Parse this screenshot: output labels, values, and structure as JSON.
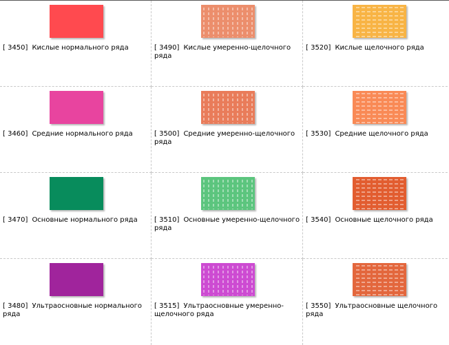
{
  "swatches": [
    {
      "code": "[  3450]",
      "label": "Кислые нормального ряда",
      "color": "#ff4a4f",
      "pattern": "solid"
    },
    {
      "code": "[  3490]",
      "label": "Кислые умеренно-щелочного ряда",
      "color": "#ec8e6c",
      "pattern": "vertical-dash"
    },
    {
      "code": "[  3520]",
      "label": "Кислые щелочного ряда",
      "color": "#f8b445",
      "pattern": "horizontal-dash"
    },
    {
      "code": "[  3460]",
      "label": "Средние нормального ряда",
      "color": "#e8449f",
      "pattern": "solid"
    },
    {
      "code": "[  3500]",
      "label": "Средние умеренно-щелочного ряда",
      "color": "#e97c5a",
      "pattern": "vertical-dash"
    },
    {
      "code": "[  3530]",
      "label": "Средние щелочного ряда",
      "color": "#f98a56",
      "pattern": "horizontal-dash"
    },
    {
      "code": "[  3470]",
      "label": "Основные нормального ряда",
      "color": "#088c5c",
      "pattern": "solid"
    },
    {
      "code": "[  3510]",
      "label": "Основные умеренно-щелочного ряда",
      "color": "#5cc57e",
      "pattern": "vertical-dash"
    },
    {
      "code": "[  3540]",
      "label": "Основные щелочного ряда",
      "color": "#e25d30",
      "pattern": "horizontal-dash"
    },
    {
      "code": "[  3480]",
      "label": "Ультраосновные нормального ряда",
      "color": "#a0249c",
      "pattern": "solid"
    },
    {
      "code": "[  3515]",
      "label": "Ультраосновные умеренно-щелочного ряда",
      "color": "#cd4bd2",
      "pattern": "vertical-dash"
    },
    {
      "code": "[  3550]",
      "label": "Ультраосновные щелочного ряда",
      "color": "#e3673d",
      "pattern": "horizontal-dash"
    }
  ]
}
